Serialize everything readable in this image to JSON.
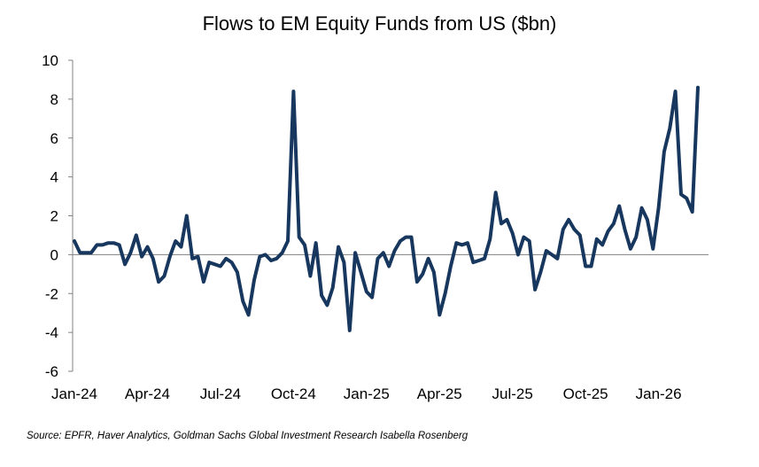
{
  "chart_data": {
    "type": "line",
    "title": "Flows to EM Equity Funds from US ($bn)",
    "xlabel": "",
    "ylabel": "",
    "ylim": [
      -6,
      10
    ],
    "yticks": [
      10,
      8,
      6,
      4,
      2,
      0,
      -2,
      -4,
      -6
    ],
    "xtick_labels": [
      "Jan-24",
      "Apr-24",
      "Jul-24",
      "Oct-24",
      "Jan-25",
      "Apr-25",
      "Jul-25",
      "Oct-25",
      "Jan-26"
    ],
    "frequency": "weekly",
    "colors": {
      "line": "#17375e",
      "axis": "#808080",
      "text": "#000000"
    },
    "series": [
      {
        "name": "Flows to EM Equity Funds from US ($bn)",
        "values": [
          0.7,
          0.1,
          0.1,
          0.1,
          0.5,
          0.5,
          0.6,
          0.6,
          0.5,
          -0.5,
          0.1,
          1.0,
          -0.1,
          0.4,
          -0.2,
          -1.4,
          -1.1,
          -0.1,
          0.7,
          0.4,
          2.0,
          -0.2,
          -0.1,
          -1.4,
          -0.4,
          -0.5,
          -0.6,
          -0.2,
          -0.4,
          -0.9,
          -2.4,
          -3.1,
          -1.3,
          -0.1,
          0.0,
          -0.3,
          -0.2,
          0.1,
          0.7,
          8.4,
          0.9,
          0.5,
          -1.1,
          0.6,
          -2.1,
          -2.6,
          -1.7,
          0.4,
          -0.4,
          -3.9,
          0.1,
          -0.9,
          -1.9,
          -2.2,
          -0.2,
          0.1,
          -0.6,
          0.2,
          0.7,
          0.9,
          0.9,
          -1.4,
          -1.0,
          -0.2,
          -0.9,
          -3.1,
          -2.0,
          -0.6,
          0.6,
          0.5,
          0.6,
          -0.4,
          -0.3,
          -0.2,
          0.8,
          3.2,
          1.6,
          1.8,
          1.1,
          0.0,
          0.9,
          0.7,
          -1.8,
          -0.9,
          0.2,
          0.0,
          -0.2,
          1.3,
          1.8,
          1.3,
          1.0,
          -0.6,
          -0.6,
          0.8,
          0.5,
          1.2,
          1.6,
          2.5,
          1.3,
          0.3,
          0.9,
          2.4,
          1.8,
          0.3,
          2.4,
          5.3,
          6.5,
          8.4,
          3.1,
          2.9,
          2.2,
          8.6
        ]
      }
    ]
  },
  "footer": {
    "source": "Source: EPFR, Haver Analytics, Goldman Sachs Global Investment Research Isabella Rosenberg"
  }
}
